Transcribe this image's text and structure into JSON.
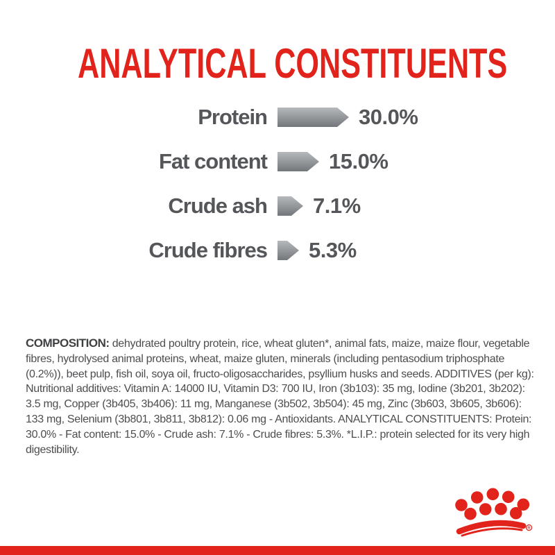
{
  "title": "ANALYTICAL CONSTITUENTS",
  "chart_data": {
    "type": "bar",
    "orientation": "horizontal",
    "title": "ANALYTICAL CONSTITUENTS",
    "categories": [
      "Protein",
      "Fat content",
      "Crude ash",
      "Crude fibres"
    ],
    "values": [
      30.0,
      15.0,
      7.1,
      5.3
    ],
    "value_labels": [
      "30.0%",
      "15.0%",
      "7.1%",
      "5.3%"
    ],
    "unit": "%",
    "xlim": [
      0,
      30
    ],
    "grid": false,
    "legend": "none",
    "bar_style": "right-pointing arrow, vertical gray gradient"
  },
  "composition": {
    "heading": "COMPOSITION:",
    "body": " dehydrated poultry protein, rice, wheat gluten*, animal fats, maize, maize flour, vegetable fibres, hydrolysed animal proteins, wheat, maize gluten, minerals (including pentasodium triphosphate (0.2%)), beet pulp, fish oil, soya oil, fructo-oligosaccharides, psyllium husks and seeds. ADDITIVES (per kg): Nutritional additives: Vitamin A: 14000 IU, Vitamin D3: 700 IU, Iron (3b103): 35 mg, Iodine (3b201, 3b202): 3.5 mg, Copper (3b405, 3b406): 11 mg, Manganese (3b502, 3b504): 45 mg, Zinc (3b603, 3b605, 3b606): 133 mg, Selenium (3b801, 3b811, 3b812): 0.06 mg - Antioxidants. ANALYTICAL CONSTITUENTS: Protein: 30.0% - Fat content: 15.0% - Crude ash: 7.1% - Crude fibres: 5.3%. *L.I.P.: protein selected for its very high digestibility."
  },
  "branding": {
    "logo": "royal-canin-crown-logo",
    "registered_mark": "R"
  },
  "colors": {
    "accent_red": "#e2231b",
    "bar_gradient_light": "#b6b9bc",
    "bar_gradient_dark": "#73767a",
    "chart_text_gray": "#545659",
    "body_text_gray": "#4c4d4f"
  }
}
